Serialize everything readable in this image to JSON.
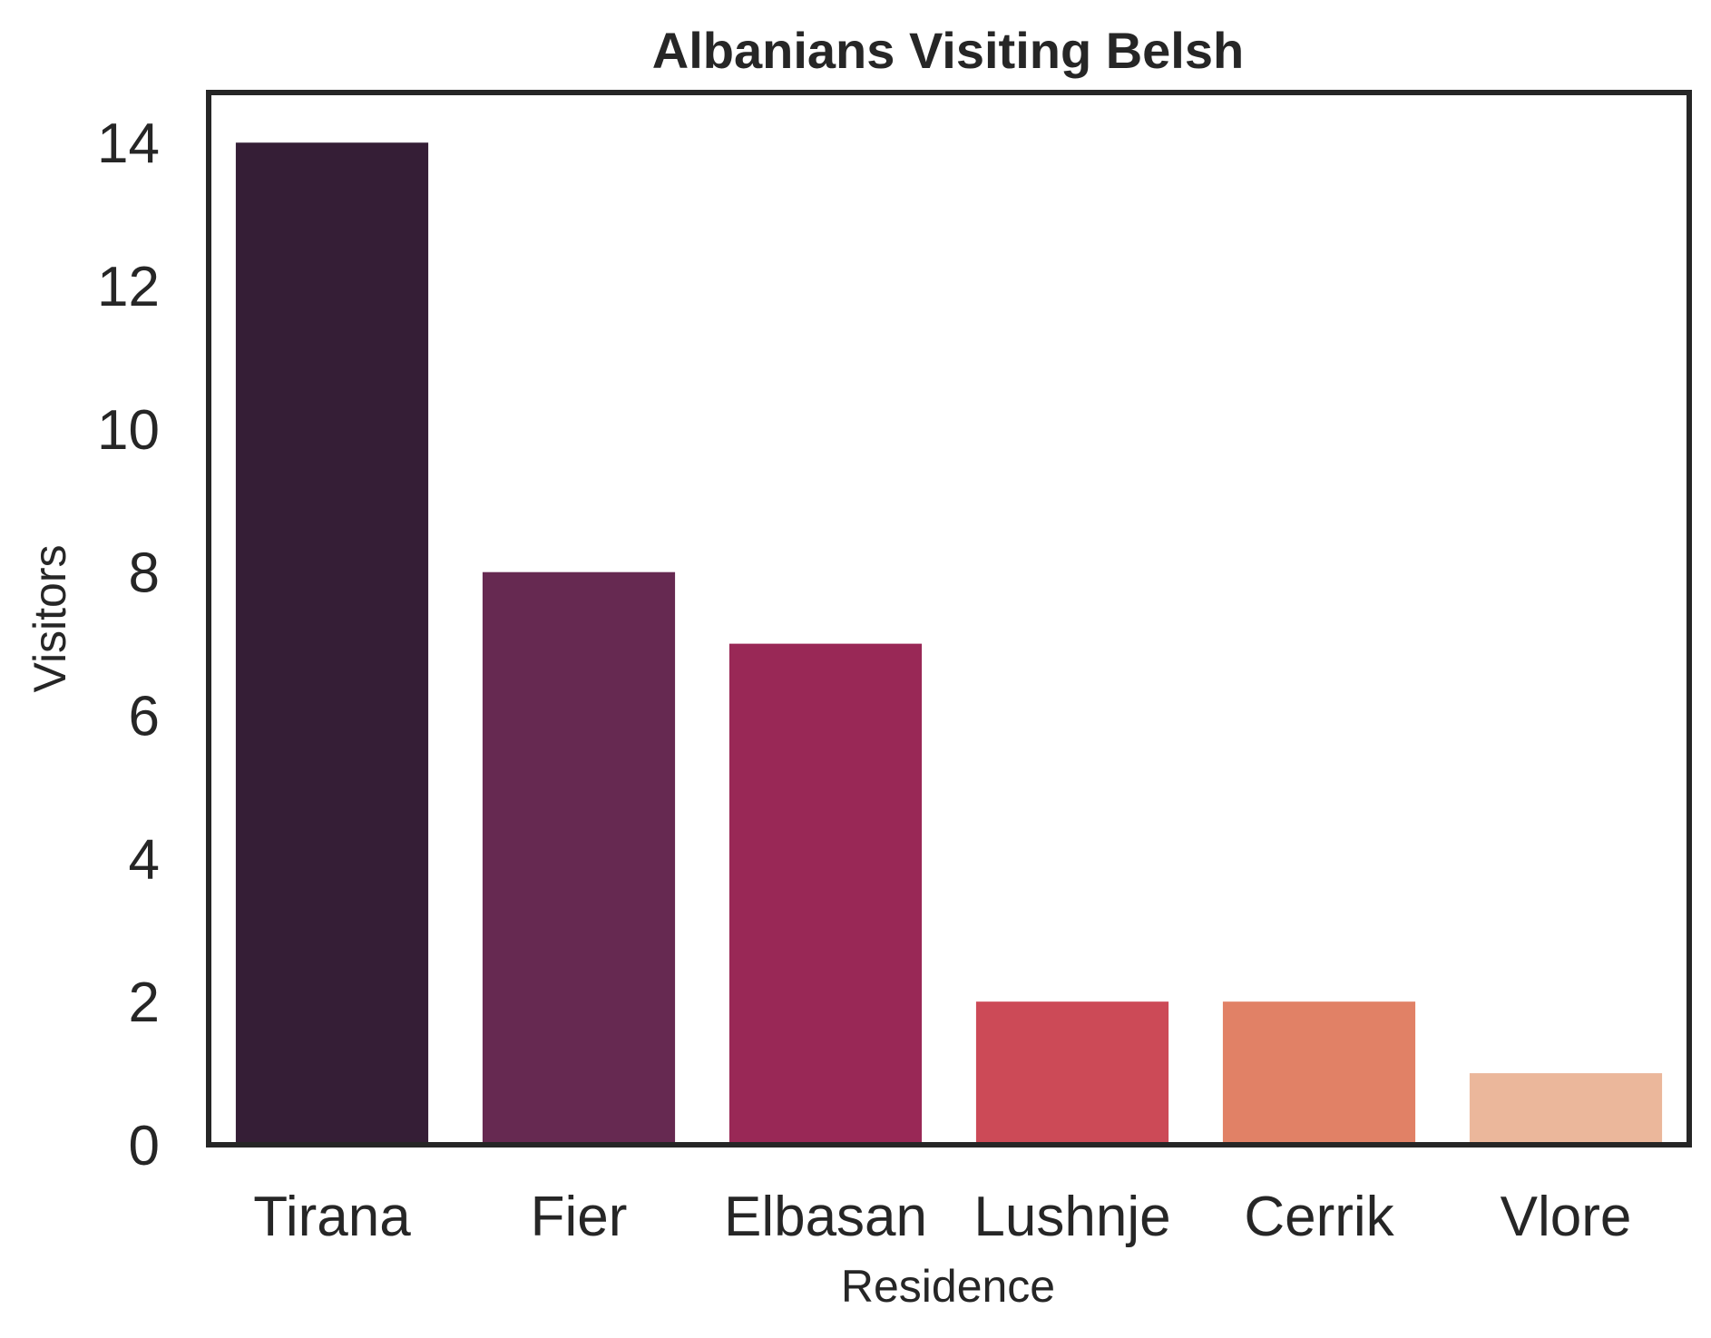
{
  "chart_data": {
    "type": "bar",
    "title": "Albanians Visiting Belsh",
    "xlabel": "Residence",
    "ylabel": "Visitors",
    "categories": [
      "Tirana",
      "Fier",
      "Elbasan",
      "Lushnje",
      "Cerrik",
      "Vlore"
    ],
    "values": [
      14,
      8,
      7,
      2,
      2,
      1
    ],
    "colors": [
      "#351e36",
      "#662951",
      "#992856",
      "#cc4a57",
      "#e18166",
      "#ebb79b"
    ],
    "ylim": [
      0,
      14.7
    ],
    "yticks": [
      0,
      2,
      4,
      6,
      8,
      10,
      12,
      14
    ],
    "grid": false,
    "legend": "none"
  }
}
